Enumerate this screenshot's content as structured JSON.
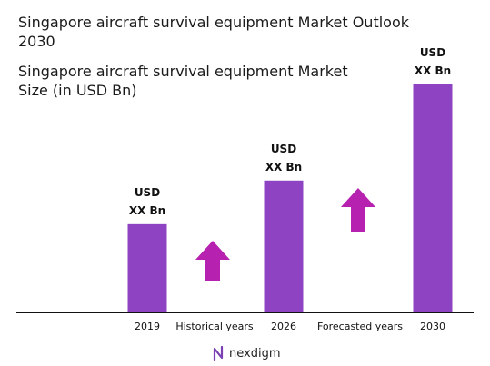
{
  "title": "Singapore aircraft survival equipment Market Outlook 2030",
  "subtitle": "Singapore aircraft survival equipment Market Size (in USD Bn)",
  "brand": {
    "name": "nexdigm"
  },
  "colors": {
    "bar": "#8e44c2",
    "arrow": "#b621b0",
    "axis": "#111111"
  },
  "chart_data": {
    "type": "bar",
    "categories": [
      "2019",
      "2026",
      "2030"
    ],
    "values": [
      1,
      1.5,
      2.6
    ],
    "value_labels": [
      [
        "USD",
        "XX Bn"
      ],
      [
        "USD",
        "XX Bn"
      ],
      [
        "USD",
        "XX Bn"
      ]
    ],
    "period_labels": [
      "Historical years",
      "Forecasted years"
    ],
    "growth_indicators": [
      "arrow-up",
      "arrow-up"
    ],
    "title": "Singapore aircraft survival equipment Market Outlook 2030",
    "ylabel": "Singapore aircraft survival equipment Market Size (in USD Bn)",
    "ylim": [
      0,
      2.6
    ],
    "grid": false,
    "legend": "none"
  }
}
